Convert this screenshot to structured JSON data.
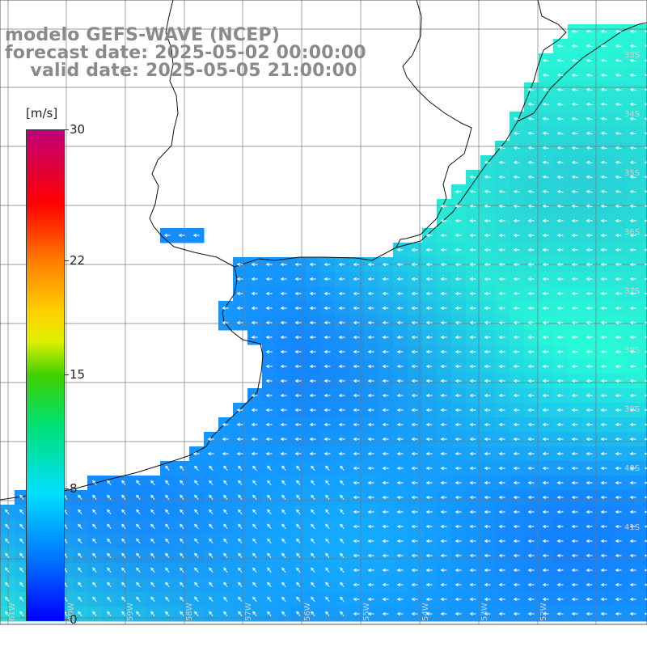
{
  "title": {
    "line1": "modelo GEFS-WAVE (NCEP)",
    "line2": "forecast date: 2025-05-02 00:00:00",
    "line3": "    valid date: 2025-05-05 21:00:00"
  },
  "colorbar": {
    "unit": "[m/s]",
    "ticks": [
      "30",
      "22",
      "15",
      "8",
      "0"
    ],
    "tick_values": [
      30,
      22,
      15,
      8,
      0
    ],
    "range": [
      0,
      30
    ],
    "colors": [
      "#0000ff",
      "#0090ff",
      "#00ddff",
      "#00ff00",
      "#ffff00",
      "#ff8800",
      "#ff0000",
      "#c0007a"
    ]
  },
  "map": {
    "lat_labels": [
      "33S",
      "34S",
      "35S",
      "36S",
      "37S",
      "38S",
      "39S",
      "40S",
      "41S"
    ],
    "lon_labels": [
      "61W",
      "60W",
      "59W",
      "58W",
      "57W",
      "56W",
      "55W",
      "54W",
      "53W",
      "52W"
    ],
    "land_color": "#ffffff",
    "grid_color": "#777777",
    "arrow_color": "#ffffff",
    "wind_field_note_colors": {
      "low": "#1e7bff",
      "mid": "#15b0ff",
      "high": "#28f0cf"
    }
  }
}
